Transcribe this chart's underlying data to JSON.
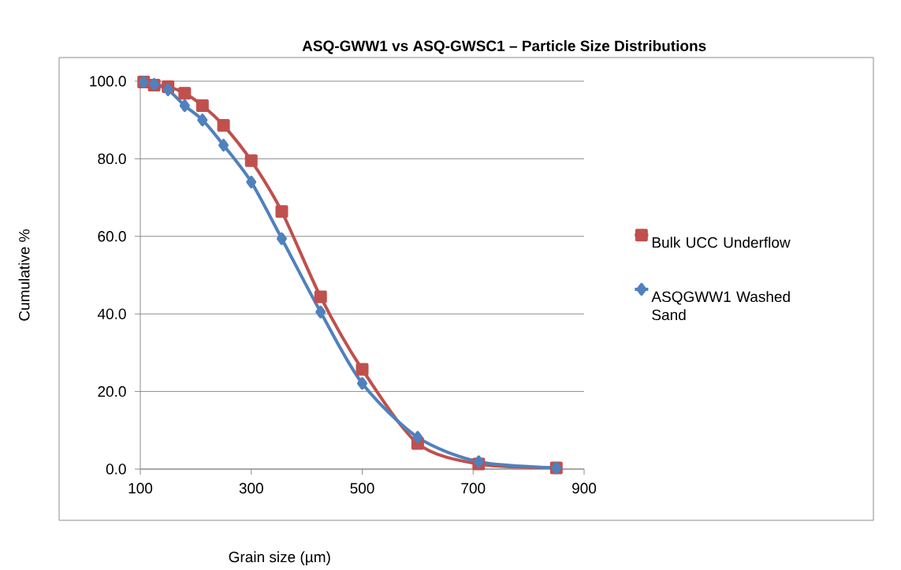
{
  "chart_data": {
    "type": "line",
    "title": "ASQ-GWW1 vs ASQ-GWSC1 – Particle Size Distributions",
    "xlabel": "Grain size (µm)",
    "ylabel": "Cumulative %",
    "x": [
      106,
      125,
      150,
      180,
      212,
      250,
      300,
      355,
      425,
      500,
      600,
      710,
      850
    ],
    "series": [
      {
        "name": "Bulk UCC Underflow",
        "color": "#c0504d",
        "marker": "square",
        "values": [
          99.8,
          99.0,
          98.6,
          96.9,
          93.7,
          88.6,
          79.5,
          66.4,
          44.4,
          25.7,
          6.6,
          1.3,
          0.3
        ]
      },
      {
        "name": "ASQGWW1 Washed Sand",
        "color": "#4f81bd",
        "marker": "diamond",
        "values": [
          99.8,
          99.2,
          97.8,
          93.7,
          90.0,
          83.5,
          74.0,
          59.4,
          40.5,
          22.1,
          8.2,
          1.9,
          0.3
        ]
      }
    ],
    "xlim": [
      100,
      900
    ],
    "xticks": [
      100,
      300,
      500,
      700,
      900
    ],
    "ylim": [
      0,
      100
    ],
    "yticks": [
      {
        "value": 0,
        "label": "0.0"
      },
      {
        "value": 20,
        "label": "20.0"
      },
      {
        "value": 40,
        "label": "40.0"
      },
      {
        "value": 60,
        "label": "60.0"
      },
      {
        "value": 80,
        "label": "80.0"
      },
      {
        "value": 100,
        "label": "100.0"
      }
    ],
    "grid": "y",
    "legend": "right",
    "line_style": "solid"
  }
}
